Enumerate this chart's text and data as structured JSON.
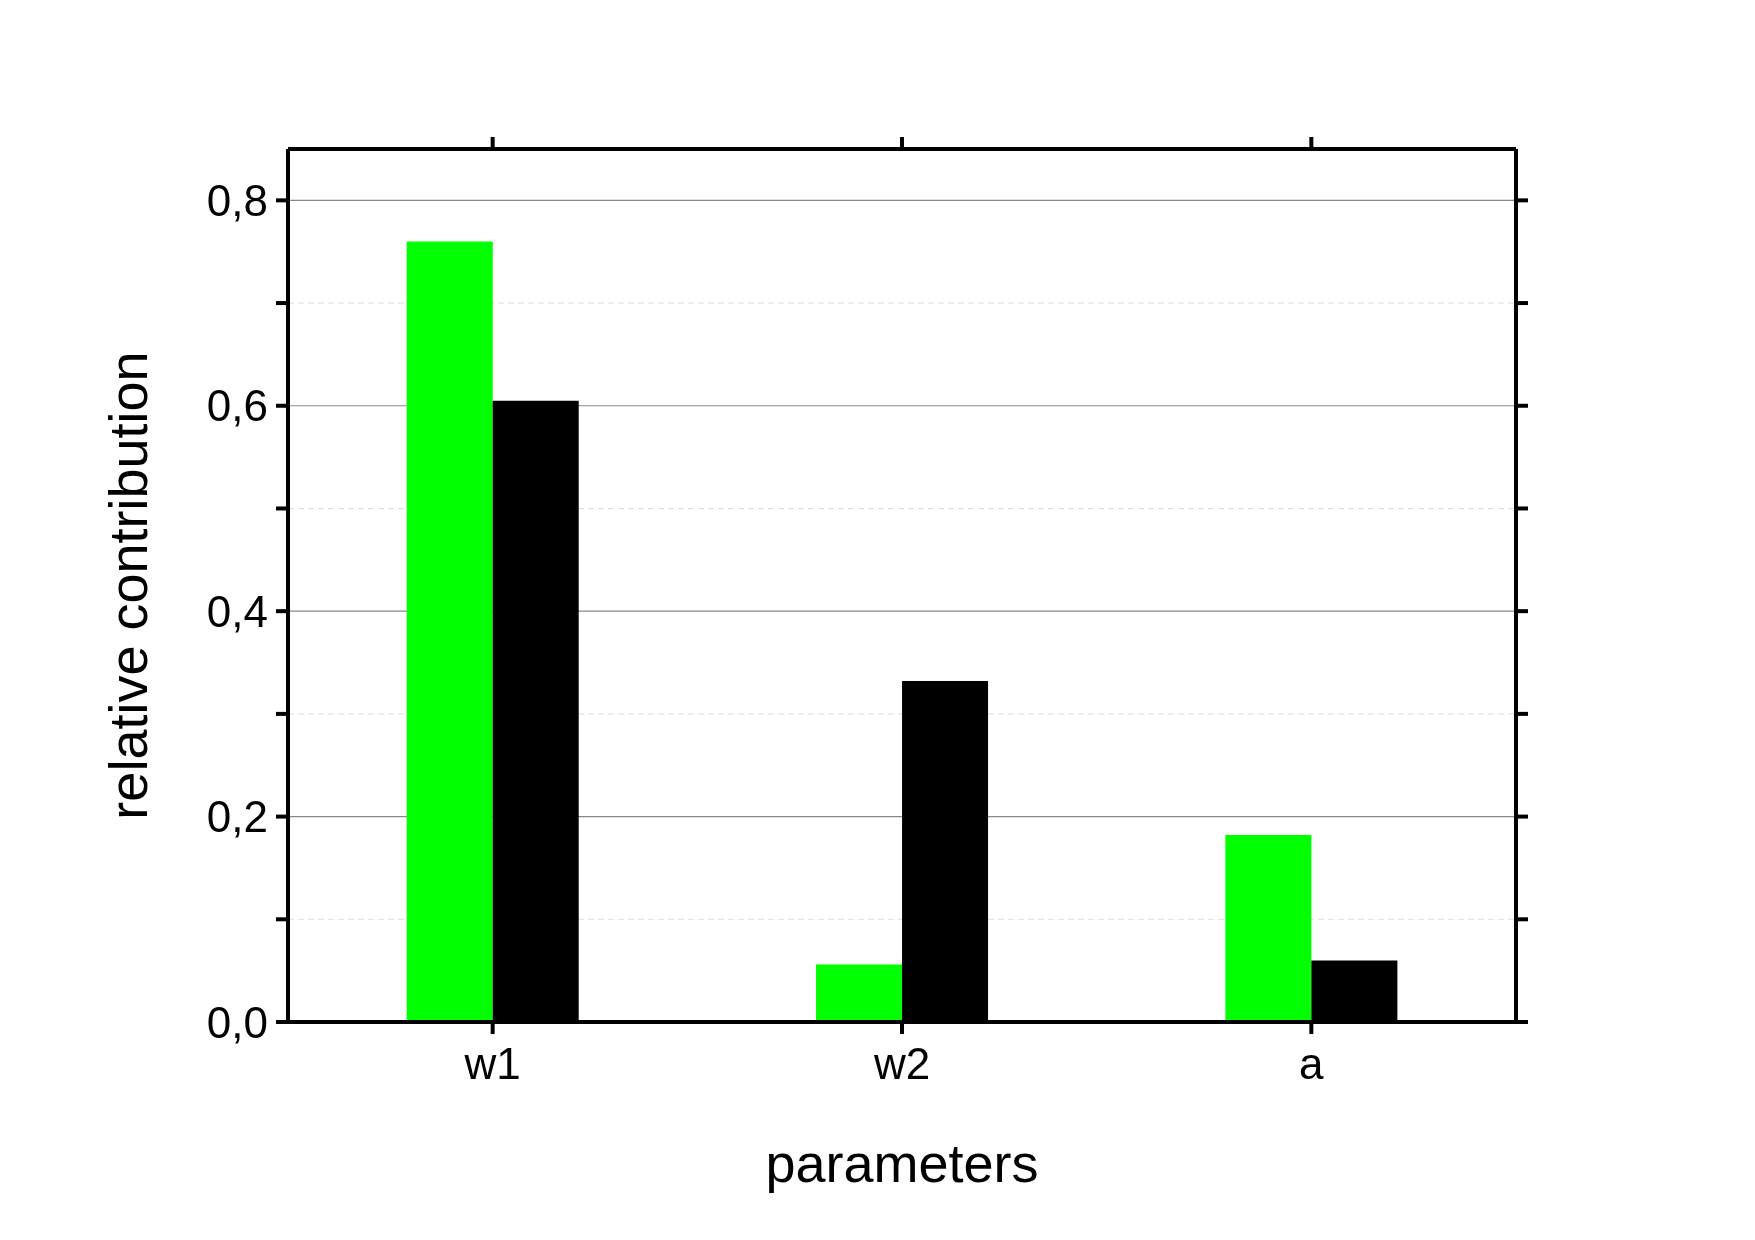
{
  "chart_data": {
    "type": "bar",
    "xlabel": "parameters",
    "ylabel": "relative contribution",
    "categories": [
      "w1",
      "w2",
      "a"
    ],
    "series": [
      {
        "color": "#00ff00",
        "values": [
          0.76,
          0.056,
          0.182
        ]
      },
      {
        "color": "#000000",
        "values": [
          0.605,
          0.332,
          0.06
        ]
      }
    ],
    "ylim": [
      0,
      0.85
    ],
    "yticks": [
      {
        "value": 0,
        "label": "0,0"
      },
      {
        "value": 0.1,
        "label": null
      },
      {
        "value": 0.2,
        "label": "0,2"
      },
      {
        "value": 0.3,
        "label": null
      },
      {
        "value": 0.4,
        "label": "0,4"
      },
      {
        "value": 0.5,
        "label": null
      },
      {
        "value": 0.6,
        "label": "0,6"
      },
      {
        "value": 0.7,
        "label": null
      },
      {
        "value": 0.8,
        "label": "0,8"
      }
    ],
    "grid": "y",
    "legend": false
  }
}
